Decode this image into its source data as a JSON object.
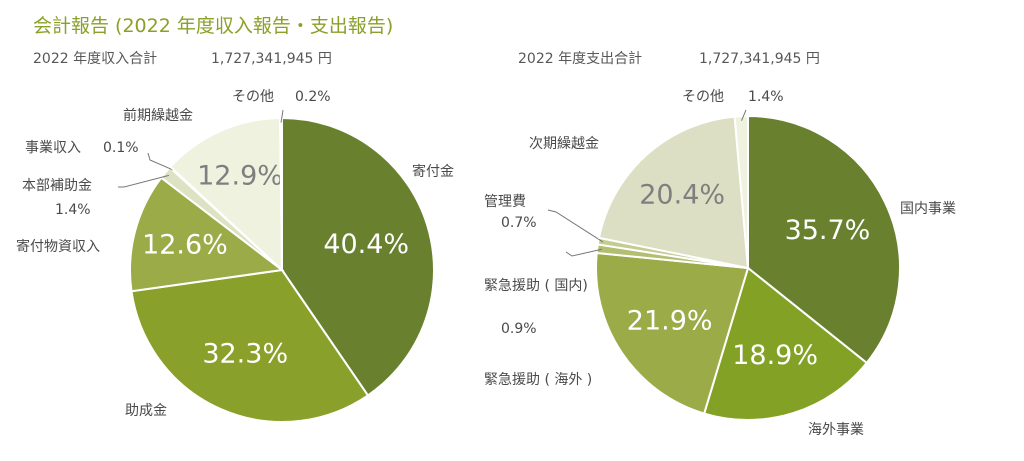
{
  "page": {
    "title": "会計報告 (2022 年度収入報告・支出報告)"
  },
  "chart_data": [
    {
      "type": "pie",
      "summary_label": "2022 年度収入合計",
      "summary_value": "1,727,341,945 円",
      "slices": [
        {
          "label": "寄付金",
          "value": 40.4,
          "display": "40.4%",
          "color": "#69802e"
        },
        {
          "label": "助成金",
          "value": 32.3,
          "display": "32.3%",
          "color": "#89a02a"
        },
        {
          "label": "寄付物資収入",
          "value": 12.6,
          "display": "12.6%",
          "color": "#9aab48"
        },
        {
          "label": "本部補助金",
          "value": 1.4,
          "display": "1.4%",
          "color": "#dde3c2"
        },
        {
          "label": "事業収入",
          "value": 0.1,
          "display": "0.1%",
          "color": "#e9edd8"
        },
        {
          "label": "前期繰越金",
          "value": 12.9,
          "display": "12.9%",
          "color": "#eff2de"
        },
        {
          "label": "その他",
          "value": 0.2,
          "display": "0.2%",
          "color": "#d9dfbb"
        }
      ]
    },
    {
      "type": "pie",
      "summary_label": "2022 年度支出合計",
      "summary_value": "1,727,341,945 円",
      "slices": [
        {
          "label": "国内事業",
          "value": 35.7,
          "display": "35.7%",
          "color": "#69802e"
        },
        {
          "label": "海外事業",
          "value": 18.9,
          "display": "18.9%",
          "color": "#82a125"
        },
        {
          "label": "緊急援助 ( 海外 )",
          "value": 21.9,
          "display": "21.9%",
          "color": "#9aab48"
        },
        {
          "label": "緊急援助 ( 国内)",
          "value": 0.9,
          "display": "0.9%",
          "color": "#b2bf70"
        },
        {
          "label": "管理費",
          "value": 0.7,
          "display": "0.7%",
          "color": "#c4cc8f"
        },
        {
          "label": "次期繰越金",
          "value": 20.4,
          "display": "20.4%",
          "color": "#dcdfc4"
        },
        {
          "label": "その他",
          "value": 1.4,
          "display": "1.4%",
          "color": "#eff2de"
        }
      ]
    }
  ]
}
